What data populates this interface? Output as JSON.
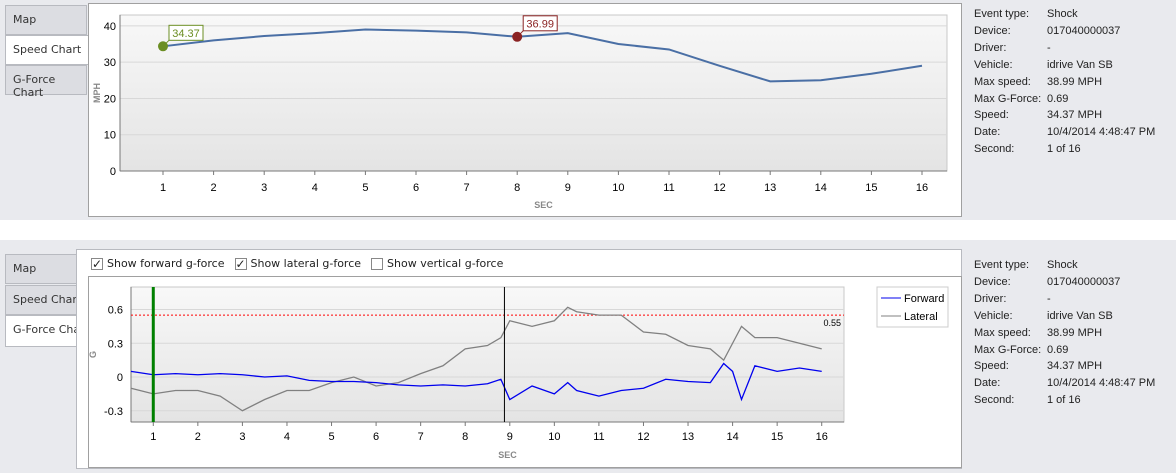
{
  "tabs": [
    {
      "label": "Map"
    },
    {
      "label": "Speed Chart"
    },
    {
      "label": "G-Force Chart"
    }
  ],
  "info": {
    "rows": [
      {
        "k": "Event type:",
        "v": "Shock"
      },
      {
        "k": "Device:",
        "v": "017040000037"
      },
      {
        "k": "Driver:",
        "v": "-"
      },
      {
        "k": "Vehicle:",
        "v": "idrive Van SB"
      },
      {
        "k": "Max speed:",
        "v": "38.99 MPH"
      },
      {
        "k": "Max G-Force:",
        "v": "0.69"
      },
      {
        "k": "Speed:",
        "v": "34.37 MPH"
      },
      {
        "k": "Date:",
        "v": "10/4/2014 4:48:47 PM"
      },
      {
        "k": "Second:",
        "v": "1 of 16"
      }
    ]
  },
  "checkboxes": [
    {
      "label": "Show forward g-force",
      "checked": true
    },
    {
      "label": "Show lateral g-force",
      "checked": true
    },
    {
      "label": "Show vertical g-force",
      "checked": false
    }
  ],
  "chart_data": [
    {
      "type": "line",
      "xlabel": "SEC",
      "ylabel": "MPH",
      "ylim": [
        0,
        43
      ],
      "yticks": [
        0,
        10,
        20,
        30,
        40
      ],
      "x": [
        1,
        2,
        3,
        4,
        5,
        6,
        7,
        8,
        9,
        10,
        11,
        12,
        13,
        14,
        15,
        16
      ],
      "series": [
        {
          "values": [
            34.37,
            36,
            37.2,
            38,
            38.99,
            38.7,
            38.2,
            36.99,
            38,
            35,
            33.5,
            29,
            24.7,
            25,
            26.8,
            29
          ],
          "color": "#4a6fa5"
        }
      ],
      "annotations": [
        {
          "x": 1,
          "y": 34.37,
          "label": "34.37",
          "color": "#6b8e23"
        },
        {
          "x": 8,
          "y": 36.99,
          "label": "36.99",
          "color": "#8b2323"
        }
      ],
      "grid": true
    },
    {
      "type": "line",
      "xlabel": "SEC",
      "ylabel": "G",
      "xlim": [
        0.5,
        16.5
      ],
      "ylim": [
        -0.4,
        0.8
      ],
      "yticks": [
        -0.3,
        0,
        0.3,
        0.6
      ],
      "x": [
        0.5,
        1,
        1.5,
        2,
        2.5,
        3,
        3.5,
        4,
        4.5,
        5,
        5.5,
        6,
        6.5,
        7,
        7.5,
        8,
        8.5,
        8.8,
        9,
        9.5,
        10,
        10.3,
        10.5,
        11,
        11.5,
        12,
        12.5,
        13,
        13.5,
        13.8,
        14,
        14.2,
        14.5,
        15,
        15.5,
        16
      ],
      "series": [
        {
          "name": "Forward",
          "color": "#0000ee",
          "values": [
            0.05,
            0.02,
            0.03,
            0.02,
            0.03,
            0.02,
            0.0,
            0.01,
            -0.03,
            -0.04,
            -0.04,
            -0.05,
            -0.07,
            -0.08,
            -0.07,
            -0.08,
            -0.06,
            -0.02,
            -0.2,
            -0.08,
            -0.15,
            -0.05,
            -0.12,
            -0.17,
            -0.12,
            -0.1,
            -0.02,
            -0.04,
            -0.05,
            0.12,
            0.05,
            -0.2,
            0.1,
            0.05,
            0.08,
            0.05
          ]
        },
        {
          "name": "Lateral",
          "color": "#808080",
          "values": [
            -0.1,
            -0.15,
            -0.12,
            -0.12,
            -0.17,
            -0.3,
            -0.2,
            -0.12,
            -0.12,
            -0.05,
            0.0,
            -0.08,
            -0.05,
            0.03,
            0.1,
            0.25,
            0.28,
            0.35,
            0.5,
            0.45,
            0.5,
            0.62,
            0.58,
            0.55,
            0.55,
            0.4,
            0.38,
            0.28,
            0.25,
            0.15,
            0.3,
            0.45,
            0.35,
            0.35,
            0.3,
            0.25
          ]
        }
      ],
      "threshold": {
        "value": 0.55,
        "label": "0.55",
        "color": "#ff0000"
      },
      "markers": [
        {
          "x": 1,
          "color": "#008000"
        },
        {
          "x": 8.88,
          "color": "#000000"
        }
      ],
      "xticks": [
        1,
        2,
        3,
        4,
        5,
        6,
        7,
        8,
        9,
        10,
        11,
        12,
        13,
        14,
        15,
        16
      ],
      "legend": "right",
      "grid": true
    }
  ]
}
